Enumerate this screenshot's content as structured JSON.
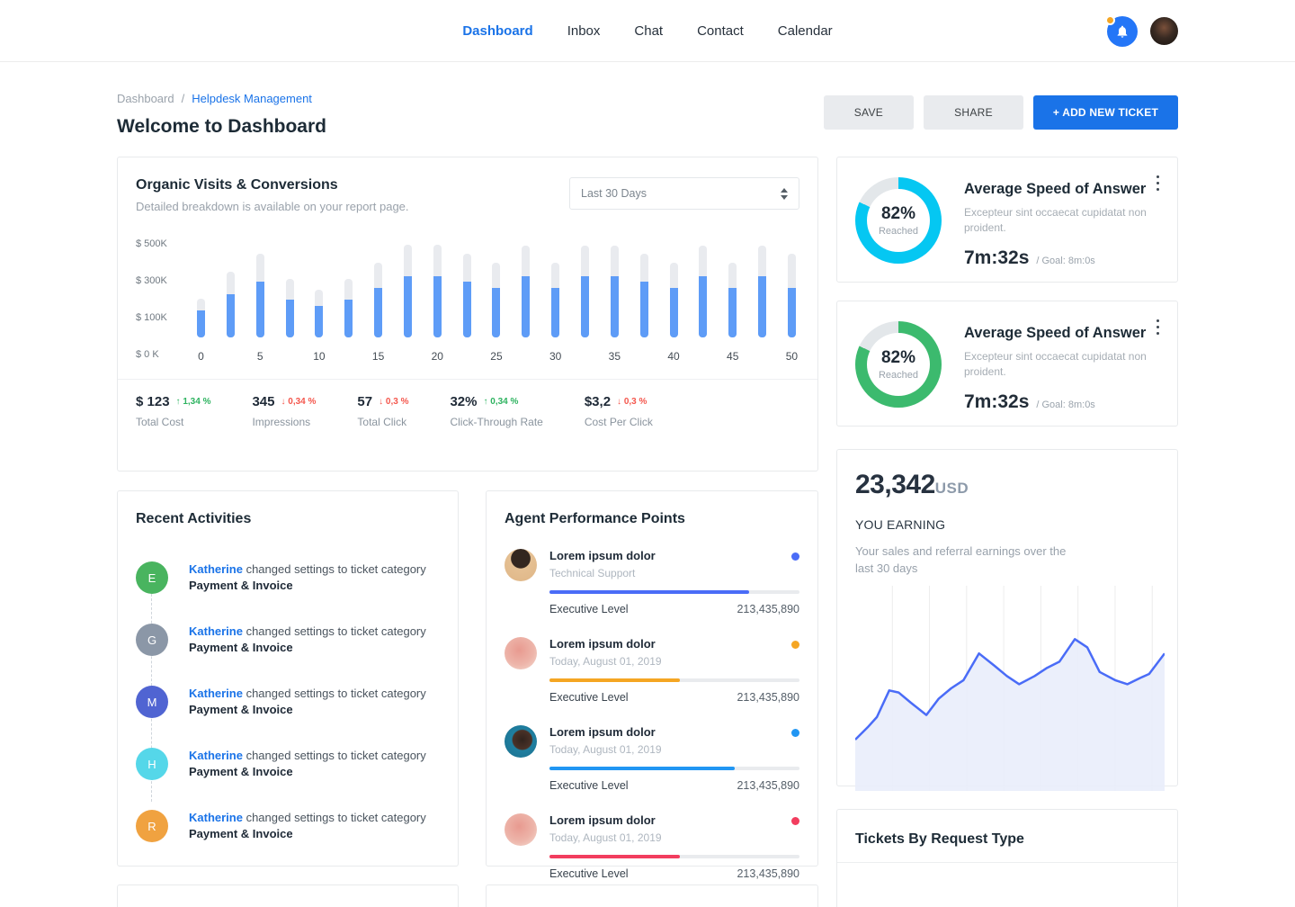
{
  "nav": {
    "items": [
      {
        "label": "Dashboard",
        "active": true
      },
      {
        "label": "Inbox",
        "active": false
      },
      {
        "label": "Chat",
        "active": false
      },
      {
        "label": "Contact",
        "active": false
      },
      {
        "label": "Calendar",
        "active": false
      }
    ]
  },
  "header_icons": {
    "bell": "bell-icon",
    "badge_color": "#f5a623",
    "bell_bg": "#2476f7"
  },
  "breadcrumb": {
    "items": [
      "Dashboard",
      "Helpdesk Management"
    ],
    "separator": "/"
  },
  "page": {
    "title": "Welcome to Dashboard"
  },
  "actions": {
    "save": "SAVE",
    "share": "SHARE",
    "add_ticket": "+ ADD NEW TICKET"
  },
  "chart_card": {
    "title": "Organic Visits & Conversions",
    "subtitle": "Detailed breakdown is available on your report page.",
    "period_selected": "Last 30 Days"
  },
  "chart_data": [
    {
      "type": "bar",
      "title": "Organic Visits & Conversions",
      "y_tick_labels": [
        "$ 500K",
        "$ 300K",
        "$ 100K",
        "$ 0 K"
      ],
      "ylim": [
        0,
        550
      ],
      "x_start": 0,
      "x_step": 2.5,
      "x_tick_labels": [
        "0",
        "5",
        "10",
        "15",
        "20",
        "25",
        "30",
        "35",
        "40",
        "45",
        "50"
      ],
      "series": [
        {
          "name": "total",
          "color": "#e9ebef",
          "values": [
            215,
            365,
            465,
            325,
            265,
            325,
            415,
            515,
            515,
            465,
            415,
            510,
            415,
            510,
            510,
            465,
            415,
            510,
            415,
            510,
            465
          ]
        },
        {
          "name": "reached",
          "color": "#5e9cf7",
          "values": [
            150,
            240,
            310,
            210,
            175,
            210,
            275,
            340,
            340,
            310,
            275,
            340,
            275,
            340,
            340,
            310,
            275,
            340,
            275,
            340,
            275
          ]
        }
      ],
      "legend": "off",
      "grid": "off"
    },
    {
      "type": "area",
      "title": "YOU EARNING — last 30 days",
      "line_color": "#4a6cf7",
      "fill_color": "#e9edfb",
      "grid": "vertical",
      "gridline_x_percents": [
        12,
        24,
        36,
        48,
        60,
        72,
        84,
        96
      ],
      "points_x_y_percent": [
        [
          0,
          25
        ],
        [
          4,
          31
        ],
        [
          7,
          36
        ],
        [
          11,
          49
        ],
        [
          14,
          48
        ],
        [
          18,
          43
        ],
        [
          23,
          37
        ],
        [
          27,
          45
        ],
        [
          31,
          50
        ],
        [
          35,
          54
        ],
        [
          40,
          67
        ],
        [
          45,
          61
        ],
        [
          49,
          56
        ],
        [
          53,
          52
        ],
        [
          58,
          56
        ],
        [
          62,
          60
        ],
        [
          66,
          63
        ],
        [
          71,
          74
        ],
        [
          75,
          70
        ],
        [
          79,
          58
        ],
        [
          84,
          54
        ],
        [
          88,
          52
        ],
        [
          92,
          55
        ],
        [
          95,
          57
        ],
        [
          100,
          67
        ]
      ]
    }
  ],
  "stats": [
    {
      "value": "$ 123",
      "arrow": "↑",
      "delta": "1,34 %",
      "direction": "up",
      "label": "Total Cost"
    },
    {
      "value": "345",
      "arrow": "↓",
      "delta": "0,34 %",
      "direction": "down",
      "label": "Impressions"
    },
    {
      "value": "57",
      "arrow": "↓",
      "delta": "0,3 %",
      "direction": "down",
      "label": "Total Click"
    },
    {
      "value": "32%",
      "arrow": "↑",
      "delta": "0,34 %",
      "direction": "up",
      "label": "Click-Through Rate"
    },
    {
      "value": "$3,2",
      "arrow": "↓",
      "delta": "0,3 %",
      "direction": "down",
      "label": "Cost Per Click"
    }
  ],
  "recent": {
    "title": "Recent Activities",
    "items": [
      {
        "letter": "E",
        "color": "#49b45f",
        "user": "Katherine",
        "text": " changed settings to ticket category",
        "category": "Payment & Invoice"
      },
      {
        "letter": "G",
        "color": "#8b97a7",
        "user": "Katherine",
        "text": " changed settings to ticket category",
        "category": "Payment & Invoice"
      },
      {
        "letter": "M",
        "color": "#5064d2",
        "user": "Katherine",
        "text": " changed settings to ticket category",
        "category": "Payment & Invoice"
      },
      {
        "letter": "H",
        "color": "#55d7e9",
        "user": "Katherine",
        "text": " changed settings to ticket category",
        "category": "Payment & Invoice"
      },
      {
        "letter": "R",
        "color": "#f0a240",
        "user": "Katherine",
        "text": " changed settings to ticket category",
        "category": "Payment & Invoice"
      }
    ]
  },
  "agents": {
    "title": "Agent Performance Points",
    "items": [
      {
        "name": "Lorem ipsum dolor",
        "subtitle": "Technical Support",
        "percent": 80,
        "color": "#4a6cf7",
        "level_label": "Executive Level",
        "points": "213,435,890",
        "avatar_bg": "radial-gradient(circle at 50% 30%, #33261f 0%, #33261f 34%, #e5c093 36%, #dfb687 100%)"
      },
      {
        "name": "Lorem ipsum dolor",
        "subtitle": "Today, August 01, 2019",
        "percent": 52,
        "color": "#f5a623",
        "level_label": "Executive Level",
        "points": "213,435,890",
        "avatar_bg": "radial-gradient(circle at 45% 40%, #e89a90 0%, #edb4a9 55%, #f4dcd2 100%)"
      },
      {
        "name": "Lorem ipsum dolor",
        "subtitle": "Today, August 01, 2019",
        "percent": 74,
        "color": "#2196f3",
        "level_label": "Executive Level",
        "points": "213,435,890",
        "avatar_bg": "radial-gradient(circle at 55% 45%, #31231d 0%, #4a3228 38%, #1f7fa0 42%, #1b6f8d 100%)"
      },
      {
        "name": "Lorem ipsum dolor",
        "subtitle": "Today, August 01, 2019",
        "percent": 52,
        "color": "#f23d5e",
        "level_label": "Executive Level",
        "points": "213,435,890",
        "avatar_bg": "radial-gradient(circle at 45% 40%, #e89a90 0%, #edb4a9 55%, #f4dcd2 100%)"
      }
    ]
  },
  "speed_cards": [
    {
      "title": "Average Speed of Answer",
      "desc": "Excepteur sint occaecat cupidatat non proident.",
      "center_pct": "82%",
      "center_label": "Reached",
      "percent": 82,
      "ring_color": "#05c7f2",
      "time": "7m:32s",
      "goal": "/ Goal: 8m:0s"
    },
    {
      "title": "Average Speed of Answer",
      "desc": "Excepteur sint occaecat cupidatat non proident.",
      "center_pct": "82%",
      "center_label": "Reached",
      "percent": 82,
      "ring_color": "#3cba6e",
      "time": "7m:32s",
      "goal": "/ Goal: 8m:0s"
    }
  ],
  "earning": {
    "amount": "23,342",
    "currency": "USD",
    "label": "YOU EARNING",
    "desc": "Your sales and referral earnings over the last 30 days"
  },
  "tickets": {
    "title": "Tickets By Request Type"
  }
}
